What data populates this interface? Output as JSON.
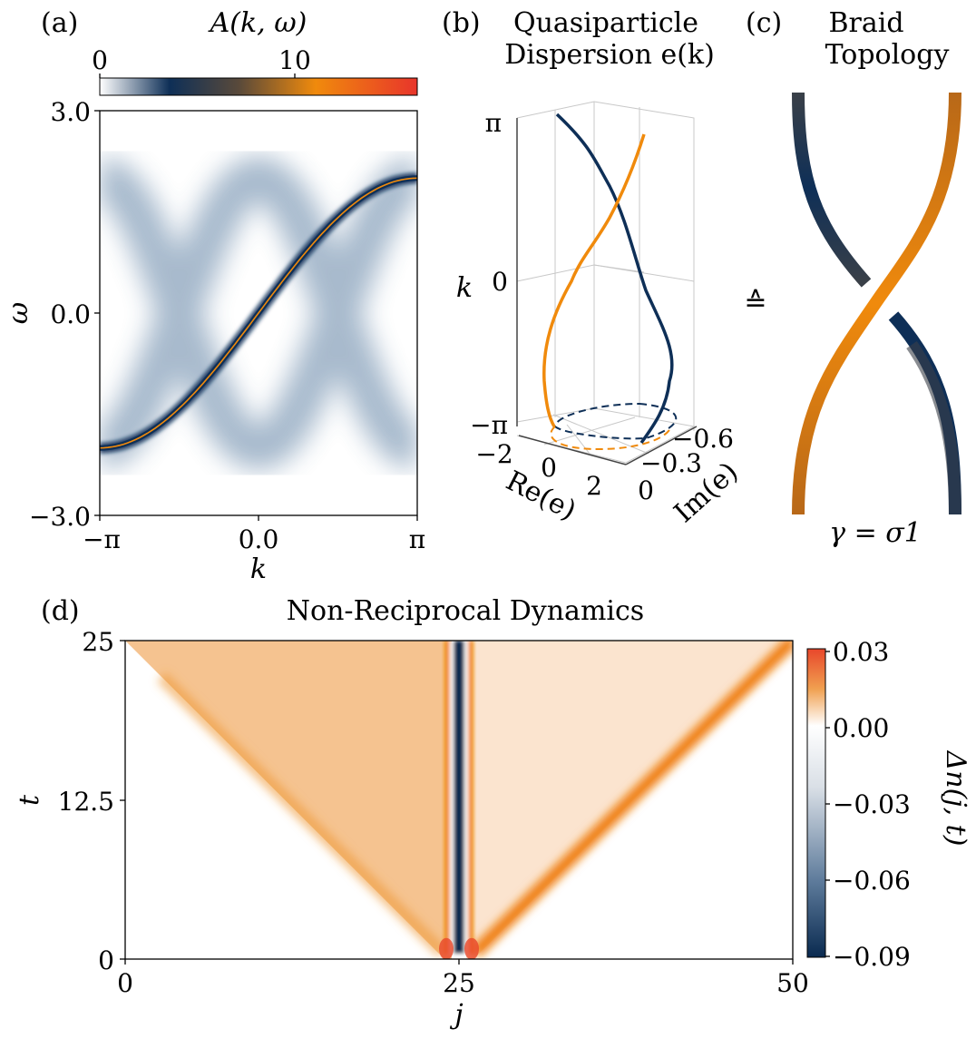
{
  "colors": {
    "navy": "#0e2f57",
    "orange": "#f08a0c",
    "red": "#e8472b",
    "gray": "#3a4048",
    "white": "#ffffff"
  },
  "panel_a": {
    "letter": "(a)",
    "colorbar_label": "A(k, ω)",
    "colorbar_ticks": [
      "0",
      "10"
    ],
    "xlabel": "k",
    "ylabel": "ω",
    "xticks": [
      "−π",
      "0.0",
      "π"
    ],
    "yticks": [
      "3.0",
      "0.0",
      "−3.0"
    ]
  },
  "panel_b": {
    "letter": "(b)",
    "title_line1": "Quasiparticle",
    "title_line2": "Dispersion e(k)",
    "k_label": "k",
    "k_ticks": [
      "π",
      "0",
      "−π"
    ],
    "re_label": "Re(e)",
    "re_ticks": [
      "−2",
      "0",
      "2"
    ],
    "im_label": "Im(e)",
    "im_ticks": [
      "−0.6",
      "−0.3",
      "0"
    ]
  },
  "panel_c": {
    "letter": "(c)",
    "title_line1": "Braid",
    "title_line2": "Topology",
    "equiv": "≙",
    "formula": "γ = σ1"
  },
  "panel_d": {
    "letter": "(d)",
    "title": "Non-Reciprocal Dynamics",
    "xlabel": "j",
    "ylabel": "t",
    "xticks": [
      "0",
      "25",
      "50"
    ],
    "yticks": [
      "25",
      "12.5",
      "0"
    ],
    "colorbar_label": "Δn(j, t)",
    "colorbar_ticks": [
      "0.03",
      "0.00",
      "−0.03",
      "−0.06",
      "−0.09"
    ]
  },
  "chart_data": [
    {
      "type": "heatmap",
      "panel": "a",
      "description_of_content": "spectral function A(k, omega): sharp band omega(k) plus two broad bands",
      "xlim": [
        -3.1416,
        3.1416
      ],
      "ylim": [
        -3.0,
        3.0
      ],
      "color_range": [
        0,
        14
      ],
      "sharp_band": {
        "k": [
          -3.1416,
          -1.571,
          0.0,
          1.571,
          3.1416
        ],
        "omega": [
          -2.0,
          -1.4,
          0.0,
          1.4,
          2.0
        ]
      },
      "broad_bands": [
        {
          "k": [
            -3.1416,
            0.0,
            3.1416
          ],
          "omega": [
            2.0,
            0.0,
            -2.0
          ]
        },
        {
          "k": [
            -3.1416,
            0.0,
            3.1416
          ],
          "omega": [
            -2.0,
            0.0,
            2.0
          ]
        }
      ]
    },
    {
      "type": "line",
      "panel": "b",
      "series": [
        {
          "color": "navy",
          "k": [
            -3.1416,
            -2.0,
            -1.0,
            0.0,
            1.0,
            2.0,
            3.1416
          ],
          "re": [
            1.8,
            2.2,
            2.0,
            1.2,
            0.8,
            0.2,
            -1.0
          ],
          "im": [
            -0.1,
            -0.2,
            -0.3,
            -0.4,
            -0.5,
            -0.55,
            -0.6
          ]
        },
        {
          "color": "orange",
          "k": [
            -3.1416,
            -2.0,
            -1.0,
            0.0,
            1.0,
            2.0,
            3.1416
          ],
          "re": [
            -0.5,
            -1.0,
            -1.2,
            -0.6,
            0.2,
            1.0,
            1.8
          ],
          "im": [
            -0.05,
            -0.1,
            -0.2,
            -0.3,
            -0.35,
            -0.45,
            -0.55
          ]
        }
      ],
      "projections": "dashed loops on k = -pi plane"
    },
    {
      "type": "heatmap",
      "panel": "d",
      "xlim": [
        0,
        50
      ],
      "ylim": [
        0,
        25
      ],
      "color_range": [
        -0.09,
        0.03
      ],
      "features": {
        "center_site": 25,
        "center_value": -0.09,
        "left_front_end": {
          "j": 0,
          "t": 25
        },
        "right_front_end": {
          "j": 50,
          "t": 25
        },
        "front_value": 0.03,
        "left_interior_value": 0.012,
        "right_interior_value": 0.004
      }
    }
  ]
}
